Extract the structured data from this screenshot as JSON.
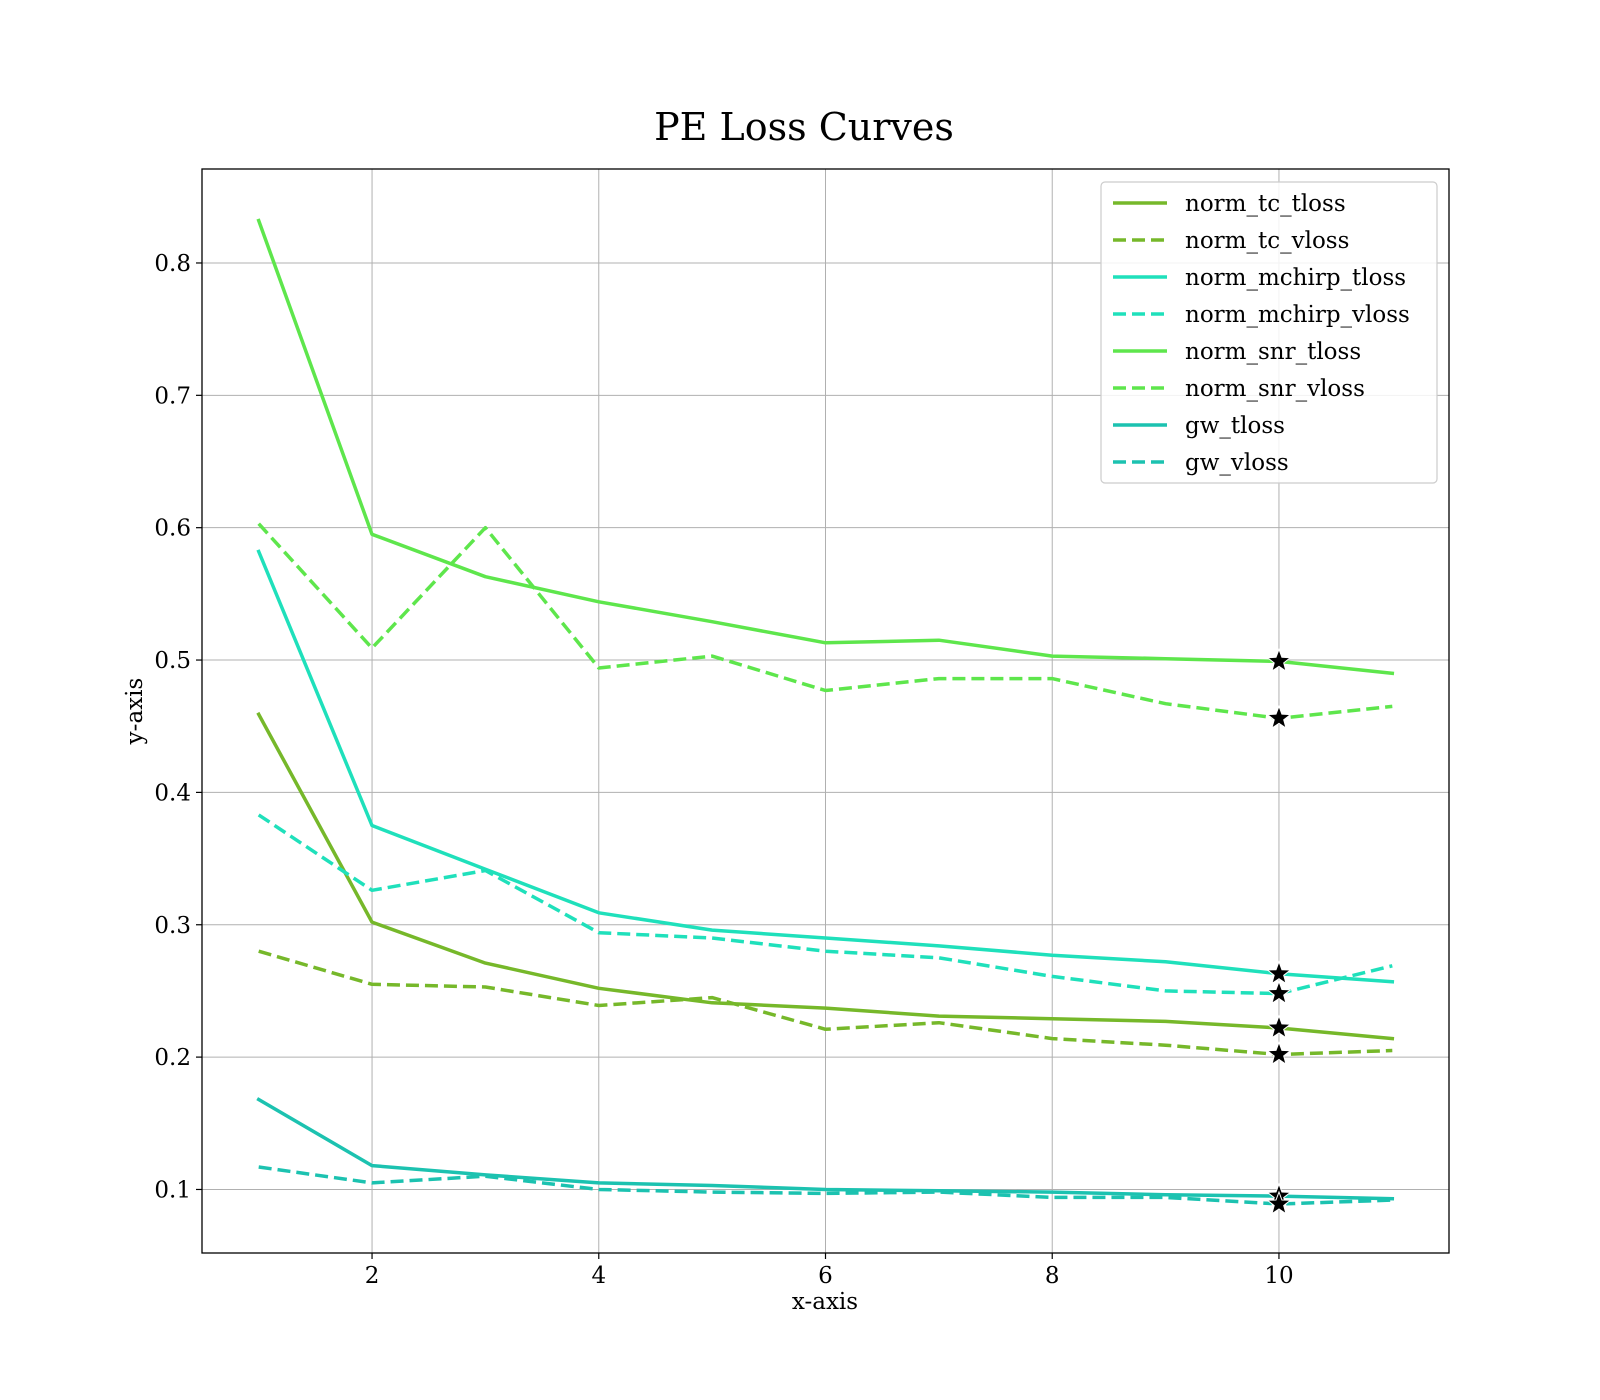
{
  "chart_data": {
    "type": "line",
    "title": "PE Loss Curves",
    "xlabel": "x-axis",
    "ylabel": "y-axis",
    "xlim": [
      0.5,
      11.5
    ],
    "ylim": [
      0.052,
      0.871
    ],
    "xticks": [
      2,
      4,
      6,
      8,
      10
    ],
    "yticks": [
      0.1,
      0.2,
      0.3,
      0.4,
      0.5,
      0.6,
      0.7,
      0.8
    ],
    "grid": true,
    "legend_position": "top-right",
    "x": [
      1,
      2,
      3,
      4,
      5,
      6,
      7,
      8,
      9,
      10,
      11
    ],
    "series": [
      {
        "name": "norm_tc_tloss",
        "color": "#76b82a",
        "dash": false,
        "values": [
          0.459,
          0.302,
          0.271,
          0.252,
          0.241,
          0.237,
          0.231,
          0.229,
          0.227,
          0.222,
          0.214
        ]
      },
      {
        "name": "norm_tc_vloss",
        "color": "#76b82a",
        "dash": true,
        "values": [
          0.28,
          0.255,
          0.253,
          0.239,
          0.245,
          0.221,
          0.226,
          0.214,
          0.209,
          0.202,
          0.205
        ]
      },
      {
        "name": "norm_mchirp_tloss",
        "color": "#1fe0bb",
        "dash": false,
        "values": [
          0.582,
          0.375,
          0.342,
          0.309,
          0.296,
          0.29,
          0.284,
          0.277,
          0.272,
          0.263,
          0.257
        ]
      },
      {
        "name": "norm_mchirp_vloss",
        "color": "#1fe0bb",
        "dash": true,
        "values": [
          0.383,
          0.326,
          0.341,
          0.294,
          0.29,
          0.28,
          0.275,
          0.261,
          0.25,
          0.248,
          0.269
        ]
      },
      {
        "name": "norm_snr_tloss",
        "color": "#5ee64c",
        "dash": false,
        "values": [
          0.832,
          0.595,
          0.563,
          0.544,
          0.529,
          0.513,
          0.515,
          0.503,
          0.501,
          0.499,
          0.49
        ]
      },
      {
        "name": "norm_snr_vloss",
        "color": "#5ee64c",
        "dash": true,
        "values": [
          0.603,
          0.509,
          0.6,
          0.494,
          0.503,
          0.477,
          0.486,
          0.486,
          0.467,
          0.456,
          0.465
        ]
      },
      {
        "name": "gw_tloss",
        "color": "#1cc2b0",
        "dash": false,
        "values": [
          0.168,
          0.118,
          0.111,
          0.105,
          0.103,
          0.1,
          0.099,
          0.098,
          0.096,
          0.095,
          0.093
        ]
      },
      {
        "name": "gw_vloss",
        "color": "#1cc2b0",
        "dash": true,
        "values": [
          0.117,
          0.105,
          0.11,
          0.1,
          0.098,
          0.097,
          0.098,
          0.094,
          0.094,
          0.089,
          0.092
        ]
      }
    ],
    "markers": [
      {
        "x": 10,
        "y": 0.222,
        "symbol": "star"
      },
      {
        "x": 10,
        "y": 0.202,
        "symbol": "star"
      },
      {
        "x": 10,
        "y": 0.263,
        "symbol": "star"
      },
      {
        "x": 10,
        "y": 0.248,
        "symbol": "star"
      },
      {
        "x": 10,
        "y": 0.499,
        "symbol": "star"
      },
      {
        "x": 10,
        "y": 0.456,
        "symbol": "star"
      },
      {
        "x": 10,
        "y": 0.095,
        "symbol": "star"
      },
      {
        "x": 10,
        "y": 0.089,
        "symbol": "star"
      }
    ]
  }
}
